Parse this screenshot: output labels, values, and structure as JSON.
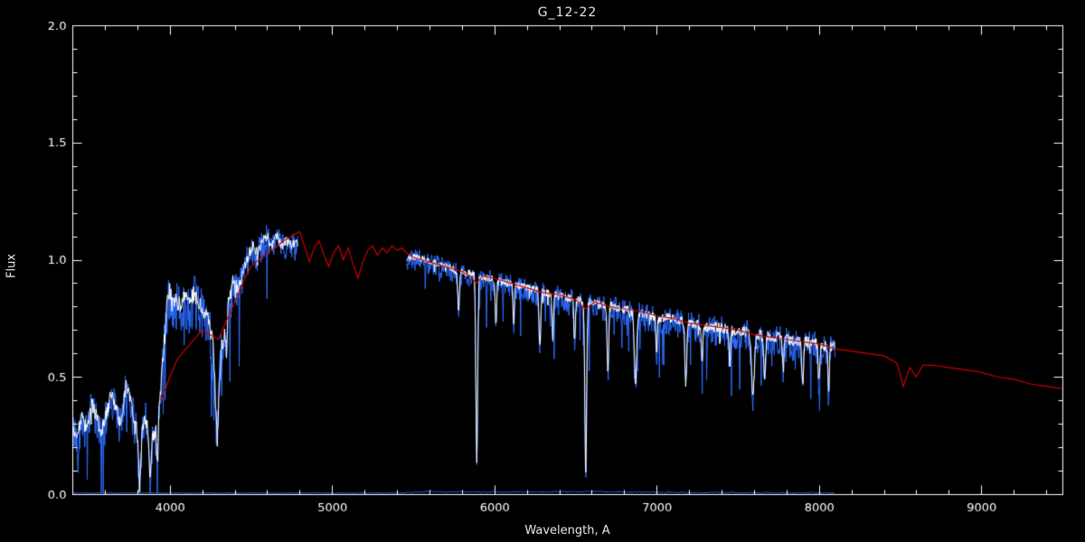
{
  "chart_data": {
    "type": "line",
    "title": "G_12-22",
    "xlabel": "Wavelength, A",
    "ylabel": "Flux",
    "xlim": [
      3400,
      9500
    ],
    "ylim": [
      0.0,
      2.0
    ],
    "xticks": [
      4000,
      5000,
      6000,
      7000,
      8000,
      9000
    ],
    "yticks": [
      0.0,
      0.5,
      1.0,
      1.5,
      2.0
    ],
    "x_minor_step": 200,
    "y_minor_step": 0.1,
    "grid": false,
    "legend": "none",
    "background_color": "#000000",
    "axis_color": "#ffffff",
    "colors": {
      "observed": "#2b6cff",
      "observed_core": "#ffffff",
      "template": "#cc0000"
    },
    "series": [
      {
        "name": "error-spectrum",
        "kind": "noisy",
        "color": "#2b6cff",
        "width": 1,
        "seed": 5,
        "step": 6,
        "spike_prob": 0,
        "spike_scale": 0,
        "segments": [
          [
            3405,
            8100
          ]
        ],
        "baseline": [
          [
            3405,
            0.005
          ],
          [
            5400,
            0.006
          ],
          [
            5600,
            0.012
          ],
          [
            6100,
            0.01
          ],
          [
            6600,
            0.012
          ],
          [
            7100,
            0.008
          ],
          [
            8100,
            0.006
          ]
        ],
        "noise_amp": [
          [
            3405,
            0.003
          ],
          [
            8100,
            0.004
          ]
        ]
      },
      {
        "name": "observed-spectrum",
        "kind": "noisy",
        "color": "#2b6cff",
        "width": 1,
        "seed": 42,
        "step": 3,
        "spike_prob": 0.06,
        "spike_scale": 3.5,
        "segments": [
          [
            3405,
            4790
          ],
          [
            5460,
            8100
          ]
        ],
        "baseline": [
          [
            3405,
            0.3
          ],
          [
            3430,
            0.26
          ],
          [
            3460,
            0.34
          ],
          [
            3490,
            0.28
          ],
          [
            3520,
            0.4
          ],
          [
            3550,
            0.34
          ],
          [
            3580,
            0.27
          ],
          [
            3610,
            0.35
          ],
          [
            3640,
            0.45
          ],
          [
            3670,
            0.38
          ],
          [
            3700,
            0.3
          ],
          [
            3730,
            0.48
          ],
          [
            3760,
            0.42
          ],
          [
            3790,
            0.3
          ],
          [
            3820,
            0.24
          ],
          [
            3850,
            0.34
          ],
          [
            3880,
            0.24
          ],
          [
            3910,
            0.28
          ],
          [
            3940,
            0.42
          ],
          [
            3960,
            0.6
          ],
          [
            3980,
            0.8
          ],
          [
            4000,
            0.88
          ],
          [
            4030,
            0.84
          ],
          [
            4060,
            0.82
          ],
          [
            4090,
            0.87
          ],
          [
            4120,
            0.82
          ],
          [
            4150,
            0.87
          ],
          [
            4180,
            0.83
          ],
          [
            4210,
            0.8
          ],
          [
            4240,
            0.76
          ],
          [
            4270,
            0.65
          ],
          [
            4300,
            0.55
          ],
          [
            4330,
            0.68
          ],
          [
            4360,
            0.82
          ],
          [
            4390,
            0.92
          ],
          [
            4420,
            0.88
          ],
          [
            4450,
            0.95
          ],
          [
            4480,
            1.02
          ],
          [
            4510,
            1.07
          ],
          [
            4540,
            1.04
          ],
          [
            4570,
            1.09
          ],
          [
            4600,
            1.11
          ],
          [
            4630,
            1.06
          ],
          [
            4660,
            1.11
          ],
          [
            4690,
            1.07
          ],
          [
            4720,
            1.09
          ],
          [
            4750,
            1.07
          ],
          [
            4790,
            1.08
          ],
          [
            5460,
            1.01
          ],
          [
            5520,
            1.02
          ],
          [
            5580,
            1.0
          ],
          [
            5640,
            0.99
          ],
          [
            5700,
            0.98
          ],
          [
            5760,
            0.96
          ],
          [
            5820,
            0.95
          ],
          [
            5880,
            0.94
          ],
          [
            5940,
            0.93
          ],
          [
            6000,
            0.92
          ],
          [
            6060,
            0.91
          ],
          [
            6120,
            0.9
          ],
          [
            6180,
            0.89
          ],
          [
            6240,
            0.88
          ],
          [
            6300,
            0.87
          ],
          [
            6360,
            0.86
          ],
          [
            6420,
            0.85
          ],
          [
            6480,
            0.84
          ],
          [
            6540,
            0.83
          ],
          [
            6600,
            0.82
          ],
          [
            6660,
            0.81
          ],
          [
            6720,
            0.81
          ],
          [
            6780,
            0.8
          ],
          [
            6840,
            0.79
          ],
          [
            6900,
            0.78
          ],
          [
            6960,
            0.77
          ],
          [
            7020,
            0.76
          ],
          [
            7080,
            0.76
          ],
          [
            7140,
            0.75
          ],
          [
            7200,
            0.74
          ],
          [
            7260,
            0.73
          ],
          [
            7320,
            0.72
          ],
          [
            7380,
            0.72
          ],
          [
            7440,
            0.71
          ],
          [
            7500,
            0.7
          ],
          [
            7560,
            0.7
          ],
          [
            7620,
            0.69
          ],
          [
            7680,
            0.68
          ],
          [
            7740,
            0.68
          ],
          [
            7800,
            0.67
          ],
          [
            7860,
            0.66
          ],
          [
            7920,
            0.66
          ],
          [
            7980,
            0.65
          ],
          [
            8040,
            0.64
          ],
          [
            8100,
            0.64
          ]
        ],
        "noise_amp": [
          [
            3405,
            0.1
          ],
          [
            3950,
            0.11
          ],
          [
            3990,
            0.13
          ],
          [
            4350,
            0.12
          ],
          [
            4460,
            0.08
          ],
          [
            4790,
            0.07
          ],
          [
            5460,
            0.05
          ],
          [
            6100,
            0.06
          ],
          [
            7000,
            0.07
          ],
          [
            7600,
            0.08
          ],
          [
            8100,
            0.08
          ]
        ],
        "dips": [
          [
            3815,
            0.16,
            14
          ],
          [
            3880,
            0.18,
            12
          ],
          [
            3925,
            0.2,
            10
          ],
          [
            4290,
            0.28,
            20
          ],
          [
            4350,
            0.15,
            10
          ],
          [
            5780,
            0.16,
            10
          ],
          [
            5892,
            0.8,
            11
          ],
          [
            6010,
            0.18,
            9
          ],
          [
            6120,
            0.16,
            9
          ],
          [
            6280,
            0.24,
            10
          ],
          [
            6360,
            0.18,
            9
          ],
          [
            6495,
            0.18,
            9
          ],
          [
            6563,
            0.72,
            11
          ],
          [
            6700,
            0.28,
            10
          ],
          [
            6870,
            0.3,
            15
          ],
          [
            7000,
            0.15,
            9
          ],
          [
            7180,
            0.26,
            12
          ],
          [
            7280,
            0.15,
            9
          ],
          [
            7450,
            0.15,
            9
          ],
          [
            7594,
            0.26,
            18
          ],
          [
            7665,
            0.18,
            11
          ],
          [
            7780,
            0.14,
            9
          ],
          [
            7900,
            0.18,
            10
          ],
          [
            8000,
            0.16,
            9
          ],
          [
            8060,
            0.2,
            9
          ]
        ]
      },
      {
        "name": "observed-spectrum-core",
        "kind": "noisy",
        "inherit": "observed-spectrum",
        "color": "#ffffff",
        "width": 1,
        "seed": 99,
        "step": 3,
        "amp_factor": 0.35,
        "spike_prob": 0.02,
        "spike_scale": 2.5
      },
      {
        "name": "template-spectrum",
        "kind": "smooth",
        "color": "#cc0000",
        "width": 1.2,
        "points": [
          [
            3950,
            0.4
          ],
          [
            4000,
            0.5
          ],
          [
            4050,
            0.58
          ],
          [
            4100,
            0.62
          ],
          [
            4150,
            0.66
          ],
          [
            4200,
            0.7
          ],
          [
            4250,
            0.68
          ],
          [
            4300,
            0.66
          ],
          [
            4350,
            0.74
          ],
          [
            4400,
            0.82
          ],
          [
            4450,
            0.9
          ],
          [
            4500,
            0.97
          ],
          [
            4550,
            1.0
          ],
          [
            4600,
            1.03
          ],
          [
            4650,
            1.05
          ],
          [
            4700,
            1.08
          ],
          [
            4750,
            1.1
          ],
          [
            4800,
            1.12
          ],
          [
            4830,
            1.06
          ],
          [
            4860,
            0.99
          ],
          [
            4890,
            1.05
          ],
          [
            4920,
            1.08
          ],
          [
            4950,
            1.02
          ],
          [
            4980,
            0.97
          ],
          [
            5010,
            1.03
          ],
          [
            5040,
            1.06
          ],
          [
            5070,
            1.0
          ],
          [
            5100,
            1.05
          ],
          [
            5130,
            0.98
          ],
          [
            5160,
            0.92
          ],
          [
            5190,
            0.99
          ],
          [
            5220,
            1.04
          ],
          [
            5250,
            1.06
          ],
          [
            5280,
            1.02
          ],
          [
            5310,
            1.05
          ],
          [
            5340,
            1.03
          ],
          [
            5370,
            1.06
          ],
          [
            5400,
            1.04
          ],
          [
            5430,
            1.05
          ],
          [
            5460,
            1.03
          ],
          [
            5500,
            1.01
          ],
          [
            5550,
            1.0
          ],
          [
            5600,
            0.99
          ],
          [
            5650,
            0.98
          ],
          [
            5700,
            0.97
          ],
          [
            5750,
            0.96
          ],
          [
            5800,
            0.95
          ],
          [
            5850,
            0.93
          ],
          [
            5890,
            0.9
          ],
          [
            5930,
            0.93
          ],
          [
            6000,
            0.92
          ],
          [
            6100,
            0.9
          ],
          [
            6200,
            0.88
          ],
          [
            6300,
            0.86
          ],
          [
            6400,
            0.85
          ],
          [
            6500,
            0.83
          ],
          [
            6560,
            0.79
          ],
          [
            6620,
            0.82
          ],
          [
            6700,
            0.8
          ],
          [
            6800,
            0.79
          ],
          [
            6900,
            0.78
          ],
          [
            7000,
            0.76
          ],
          [
            7100,
            0.75
          ],
          [
            7200,
            0.73
          ],
          [
            7300,
            0.72
          ],
          [
            7400,
            0.71
          ],
          [
            7500,
            0.7
          ],
          [
            7600,
            0.68
          ],
          [
            7700,
            0.67
          ],
          [
            7800,
            0.66
          ],
          [
            7900,
            0.65
          ],
          [
            8000,
            0.64
          ],
          [
            8100,
            0.62
          ],
          [
            8200,
            0.61
          ],
          [
            8300,
            0.6
          ],
          [
            8400,
            0.59
          ],
          [
            8480,
            0.56
          ],
          [
            8520,
            0.46
          ],
          [
            8560,
            0.54
          ],
          [
            8600,
            0.5
          ],
          [
            8640,
            0.55
          ],
          [
            8700,
            0.55
          ],
          [
            8800,
            0.54
          ],
          [
            8900,
            0.53
          ],
          [
            9000,
            0.52
          ],
          [
            9100,
            0.5
          ],
          [
            9200,
            0.49
          ],
          [
            9300,
            0.47
          ],
          [
            9400,
            0.46
          ],
          [
            9500,
            0.45
          ]
        ]
      }
    ]
  }
}
